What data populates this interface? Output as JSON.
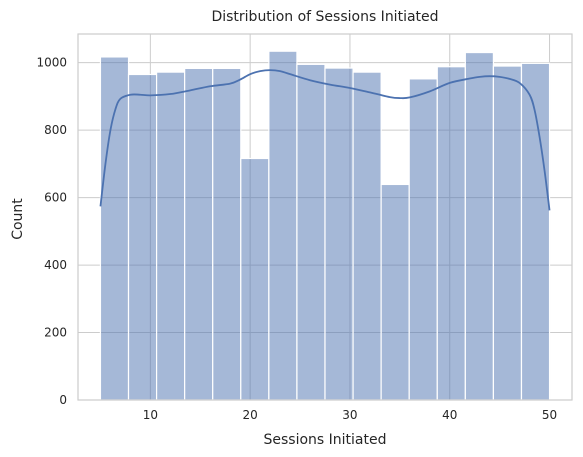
{
  "chart_data": {
    "type": "bar",
    "title": "Distribution of Sessions Initiated",
    "xlabel": "Sessions Initiated",
    "ylabel": "Count",
    "xlim": [
      2.75,
      52.25
    ],
    "ylim": [
      0,
      1085
    ],
    "xticks": [
      10,
      20,
      30,
      40,
      50
    ],
    "yticks": [
      0,
      200,
      400,
      600,
      800,
      1000
    ],
    "grid": true,
    "bin_edges": [
      5,
      7.8125,
      10.625,
      13.4375,
      16.25,
      19.0625,
      21.875,
      24.6875,
      27.5,
      30.3125,
      33.125,
      35.9375,
      38.75,
      41.5625,
      44.375,
      47.1875,
      50
    ],
    "values": [
      1017,
      965,
      972,
      983,
      983,
      716,
      1034,
      995,
      984,
      972,
      639,
      952,
      988,
      1030,
      990,
      998
    ],
    "kde": {
      "x": [
        5,
        5.5,
        6,
        6.5,
        7,
        8,
        9,
        10,
        12,
        14,
        16,
        18,
        19,
        20,
        21,
        22,
        23,
        24,
        26,
        28,
        30,
        32,
        34,
        35,
        36,
        38,
        40,
        42,
        43,
        44,
        45,
        46,
        47,
        48,
        48.5,
        49,
        49.5,
        50
      ],
      "y": [
        574,
        700,
        800,
        862,
        893,
        905,
        905,
        903,
        907,
        918,
        930,
        938,
        950,
        966,
        975,
        978,
        975,
        966,
        948,
        935,
        925,
        912,
        898,
        895,
        897,
        915,
        940,
        953,
        958,
        960,
        958,
        952,
        940,
        905,
        860,
        780,
        680,
        562
      ]
    },
    "colors": {
      "bar_fill": "#4c72b0",
      "bar_opacity": 0.5,
      "bar_edge": "#ffffff",
      "kde_line": "#4c72b0",
      "grid": "#cccccc",
      "spine": "#cccccc"
    }
  }
}
